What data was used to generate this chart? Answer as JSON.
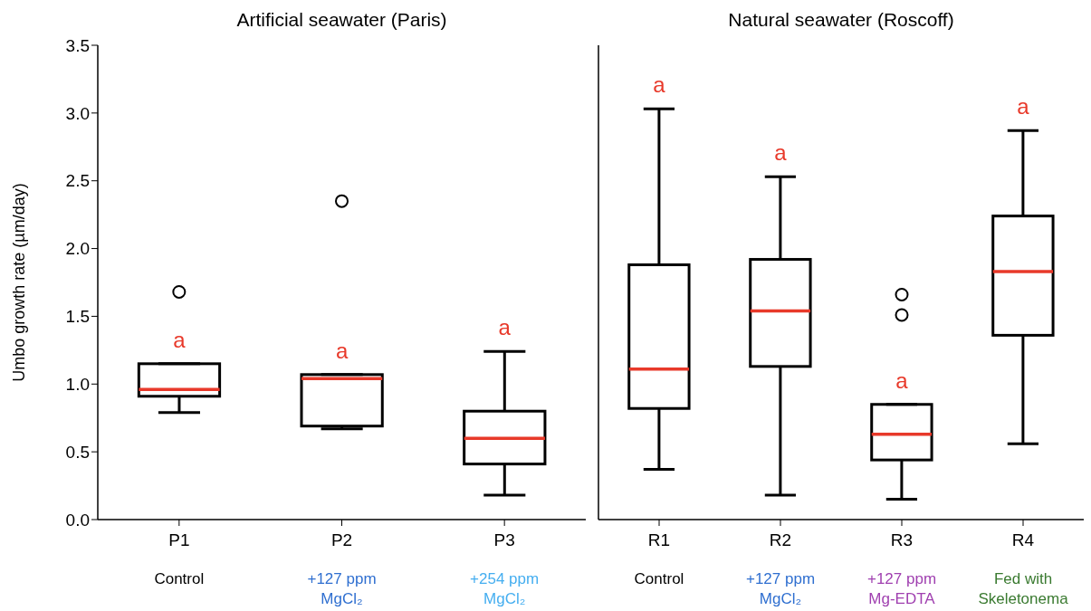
{
  "chart_data": [
    {
      "type": "box",
      "title": "Artificial seawater (Paris)",
      "ylabel": "Umbo growth rate (µm/day)",
      "categories": [
        "P1",
        "P2",
        "P3"
      ],
      "ylim": [
        0,
        3.5
      ],
      "yticks": [
        {
          "value": 0,
          "label": "0.0"
        },
        {
          "value": 0.5,
          "label": "0.5"
        },
        {
          "value": 1,
          "label": "1.0"
        },
        {
          "value": 1.5,
          "label": "1.5"
        },
        {
          "value": 2,
          "label": "2.0"
        },
        {
          "value": 2.5,
          "label": "2.5"
        },
        {
          "value": 3,
          "label": "3.0"
        },
        {
          "value": 3.5,
          "label": "3.5"
        }
      ],
      "series": [
        {
          "color": "#000000",
          "boxes": [
            {
              "low": 0.79,
              "q1": 0.91,
              "median": 0.96,
              "q3": 1.15,
              "high": 1.15,
              "outliers": [
                1.68
              ]
            },
            {
              "low": 0.67,
              "q1": 0.69,
              "median": 1.04,
              "q3": 1.07,
              "high": 1.07,
              "outliers": [
                2.35
              ]
            },
            {
              "low": 0.18,
              "q1": 0.41,
              "median": 0.6,
              "q3": 0.8,
              "high": 1.24
            }
          ]
        }
      ],
      "annotations": [
        "a",
        "a",
        "a",
        "Control",
        "+127 ppm MgCl₂",
        "+254 ppm MgCl₂"
      ]
    },
    {
      "type": "box",
      "title": "Natural seawater (Roscoff)",
      "categories": [
        "R1",
        "R2",
        "R3",
        "R4"
      ],
      "ylim": [
        0,
        3.5
      ],
      "tick_labels": "x",
      "series": [
        {
          "color": "#000000",
          "boxes": [
            {
              "low": 0.37,
              "q1": 0.82,
              "median": 1.11,
              "q3": 1.88,
              "high": 3.03
            },
            {
              "low": 0.18,
              "q1": 1.13,
              "median": 1.54,
              "q3": 1.92,
              "high": 2.53
            },
            {
              "low": 0.15,
              "q1": 0.44,
              "median": 0.63,
              "q3": 0.85,
              "high": 0.85,
              "outliers": [
                1.66,
                1.51
              ]
            },
            {
              "low": 0.56,
              "q1": 1.36,
              "median": 1.83,
              "q3": 2.24,
              "high": 2.87
            }
          ]
        }
      ],
      "annotations": [
        "a",
        "a",
        "a",
        "a",
        "Control",
        "+127 ppm MgCl₂",
        "+127 ppm Mg-EDTA",
        "Fed with Skeletonema"
      ]
    }
  ]
}
